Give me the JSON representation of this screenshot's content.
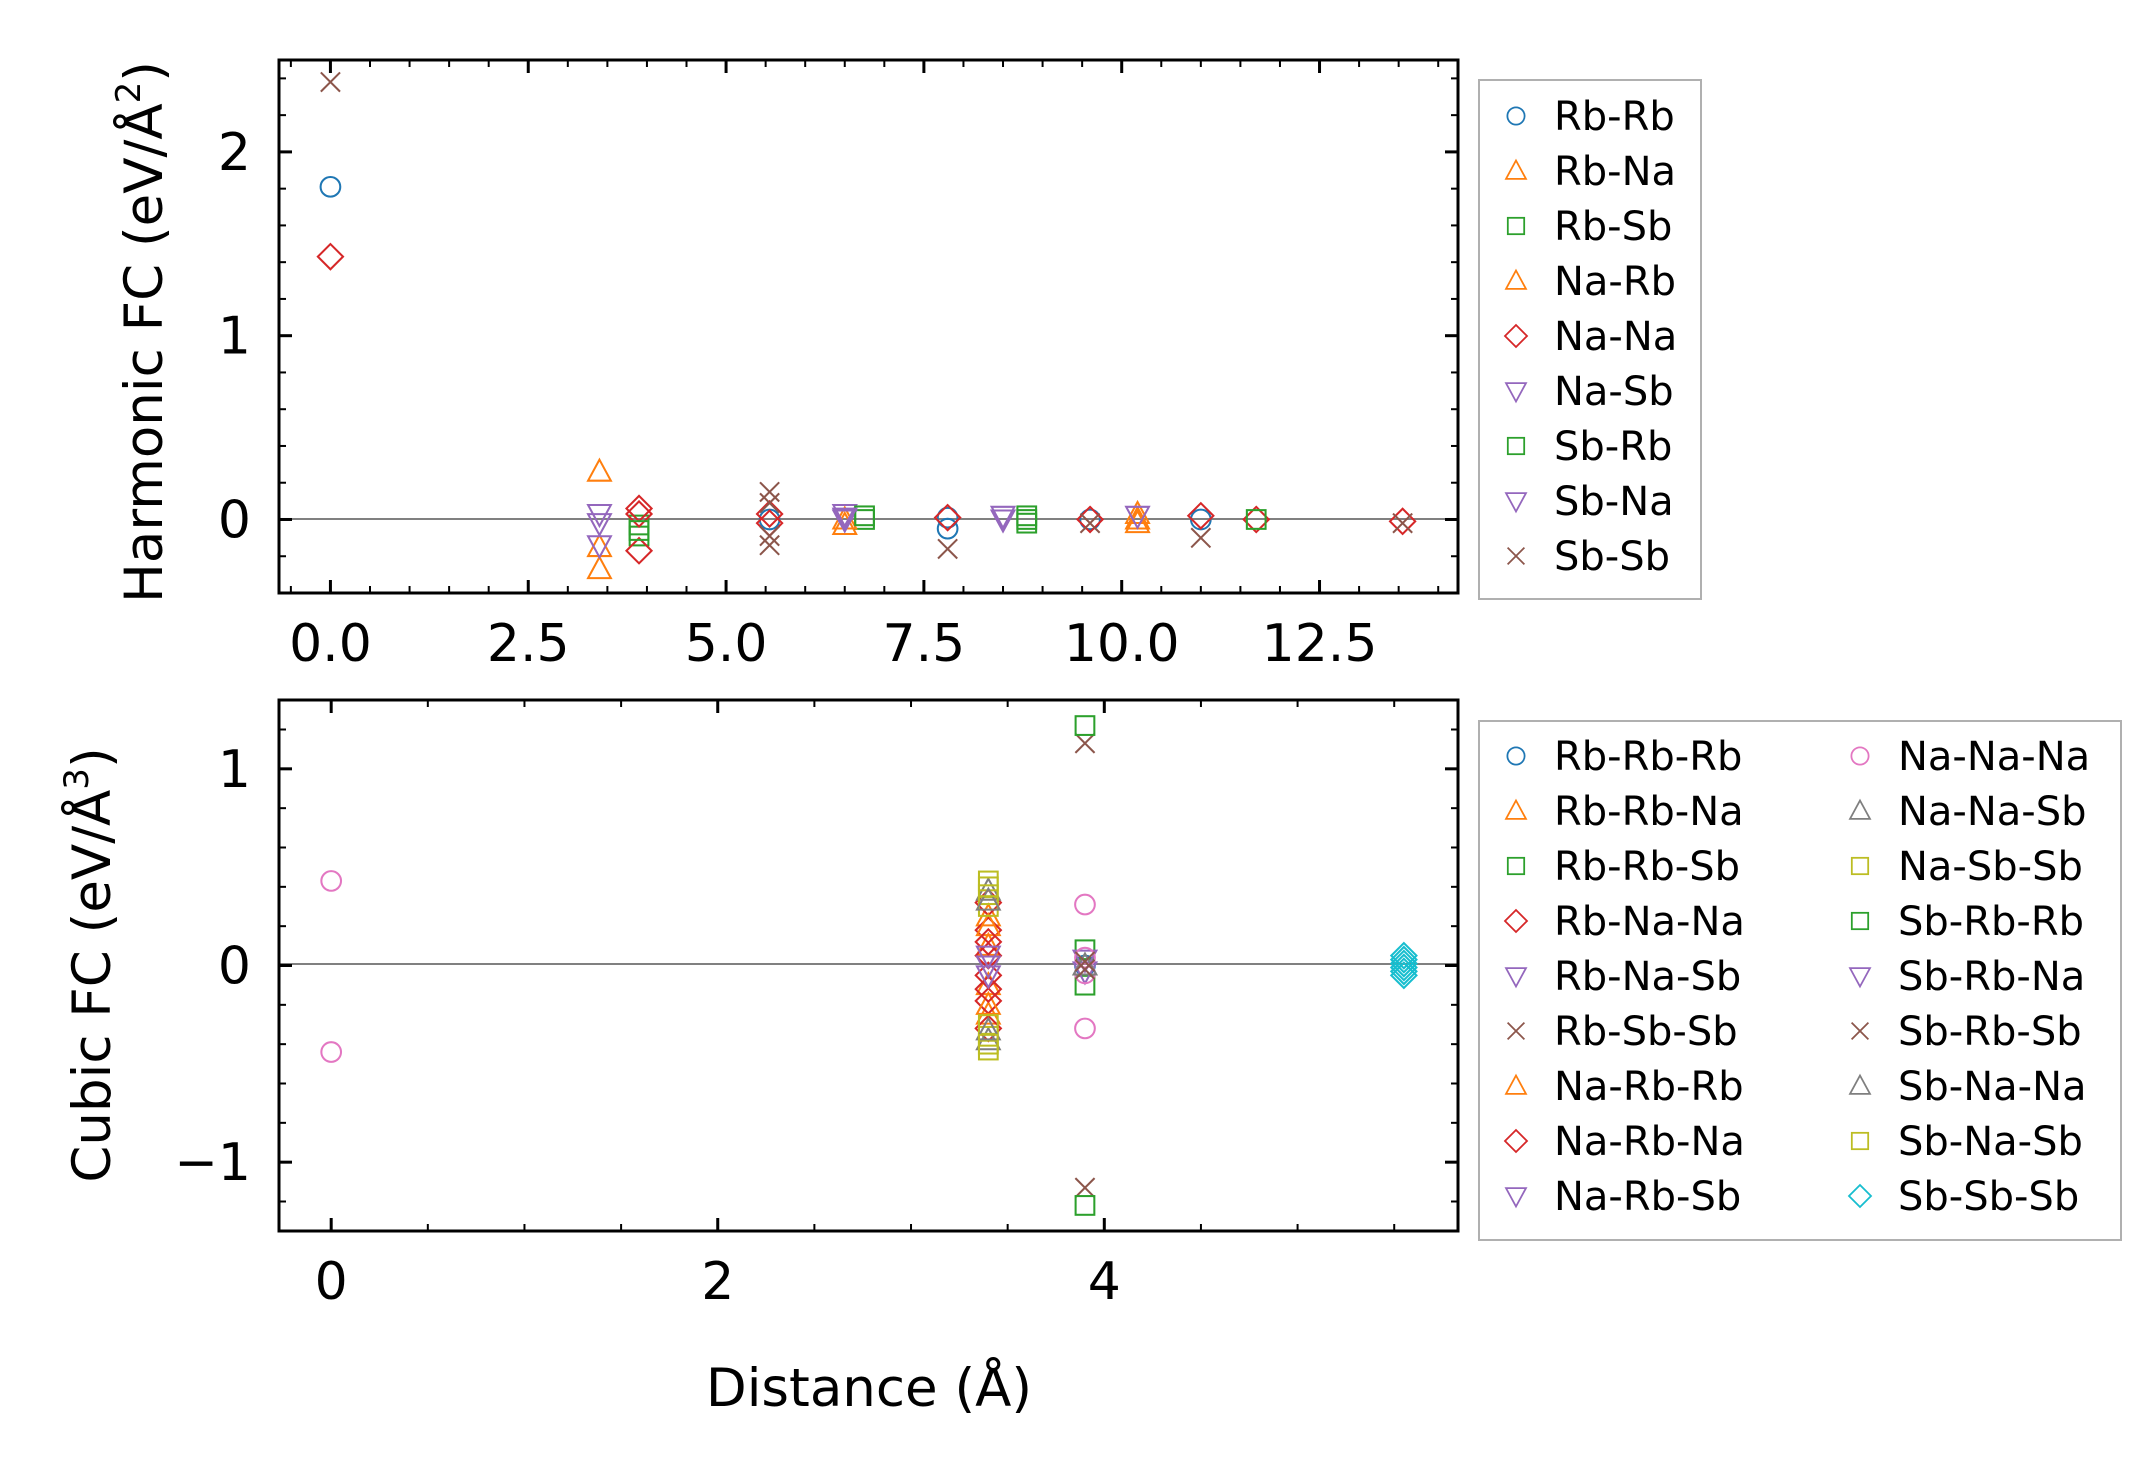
{
  "chart_data": [
    {
      "type": "scatter",
      "ylabel": "Harmonic FC (eV/Å²)",
      "ylabel_main": "Harmonic FC (eV/Å",
      "ylabel_sup": "2",
      "ylabel_end": ")",
      "xlabel": "",
      "xlim": [
        -0.65,
        14.25
      ],
      "ylim": [
        -0.4,
        2.5
      ],
      "xticks": [
        0.0,
        2.5,
        5.0,
        7.5,
        10.0,
        12.5
      ],
      "xtick_labels": [
        "0.0",
        "2.5",
        "5.0",
        "7.5",
        "10.0",
        "12.5"
      ],
      "yticks": [
        0,
        1,
        2
      ],
      "ytick_labels": [
        "0",
        "1",
        "2"
      ],
      "zero_line": true,
      "legend_position": "outside-right",
      "series": [
        {
          "name": "Rb-Rb",
          "marker": "circle",
          "color": "#1f77b4",
          "points": [
            [
              0.0,
              1.81
            ],
            [
              5.55,
              0.0
            ],
            [
              7.8,
              -0.05
            ],
            [
              7.8,
              0.01
            ],
            [
              9.6,
              0.0
            ],
            [
              11.0,
              0.0
            ]
          ]
        },
        {
          "name": "Rb-Na",
          "marker": "triangle-up",
          "color": "#ff7f0e",
          "points": [
            [
              3.4,
              0.26
            ],
            [
              3.4,
              -0.27
            ],
            [
              6.5,
              -0.03
            ],
            [
              10.2,
              0.0
            ],
            [
              10.2,
              0.03
            ]
          ]
        },
        {
          "name": "Rb-Sb",
          "marker": "square",
          "color": "#2ca02c",
          "points": [
            [
              3.9,
              -0.03
            ],
            [
              3.9,
              -0.09
            ],
            [
              6.75,
              0.0
            ],
            [
              8.8,
              0.02
            ],
            [
              8.8,
              -0.02
            ]
          ]
        },
        {
          "name": "Na-Rb",
          "marker": "triangle-up",
          "color": "#ff7f0e",
          "points": [
            [
              3.4,
              -0.15
            ],
            [
              6.5,
              0.0
            ],
            [
              10.2,
              -0.02
            ]
          ]
        },
        {
          "name": "Na-Na",
          "marker": "diamond",
          "color": "#d62728",
          "points": [
            [
              0.0,
              1.43
            ],
            [
              3.9,
              0.06
            ],
            [
              3.9,
              0.03
            ],
            [
              3.9,
              -0.17
            ],
            [
              5.55,
              0.03
            ],
            [
              5.55,
              -0.02
            ],
            [
              7.8,
              0.01
            ],
            [
              9.6,
              0.0
            ],
            [
              11.0,
              0.02
            ],
            [
              11.7,
              0.0
            ],
            [
              13.55,
              -0.01
            ]
          ]
        },
        {
          "name": "Na-Sb",
          "marker": "triangle-down",
          "color": "#9467bd",
          "points": [
            [
              3.4,
              0.03
            ],
            [
              3.4,
              -0.02
            ],
            [
              6.5,
              0.03
            ],
            [
              6.5,
              0.0
            ],
            [
              8.5,
              0.02
            ],
            [
              10.2,
              0.02
            ]
          ]
        },
        {
          "name": "Sb-Rb",
          "marker": "square",
          "color": "#2ca02c",
          "points": [
            [
              3.9,
              -0.06
            ],
            [
              6.75,
              0.02
            ],
            [
              8.8,
              0.0
            ],
            [
              11.7,
              0.0
            ]
          ]
        },
        {
          "name": "Sb-Na",
          "marker": "triangle-down",
          "color": "#9467bd",
          "points": [
            [
              3.4,
              -0.14
            ],
            [
              6.5,
              0.01
            ],
            [
              8.5,
              0.0
            ]
          ]
        },
        {
          "name": "Sb-Sb",
          "marker": "x",
          "color": "#8c564b",
          "points": [
            [
              0.0,
              2.38
            ],
            [
              5.55,
              0.15
            ],
            [
              5.55,
              0.09
            ],
            [
              5.55,
              -0.09
            ],
            [
              5.55,
              -0.14
            ],
            [
              7.8,
              -0.16
            ],
            [
              9.6,
              -0.02
            ],
            [
              11.0,
              -0.1
            ],
            [
              13.55,
              -0.02
            ]
          ]
        }
      ]
    },
    {
      "type": "scatter",
      "ylabel": "Cubic FC (eV/Å³)",
      "ylabel_main": "Cubic FC (eV/Å",
      "ylabel_sup": "3",
      "ylabel_end": ")",
      "xlabel": "Distance (Å)",
      "xlim": [
        -0.27,
        5.83
      ],
      "ylim": [
        -1.35,
        1.35
      ],
      "xticks": [
        0,
        2,
        4
      ],
      "xtick_labels": [
        "0",
        "2",
        "4"
      ],
      "yticks": [
        -1,
        0,
        1
      ],
      "ytick_labels": [
        "−1",
        "0",
        "1"
      ],
      "zero_line": true,
      "legend_position": "outside-right",
      "series": [
        {
          "name": "Rb-Rb-Rb",
          "marker": "circle",
          "color": "#1f77b4",
          "points": [
            [
              3.9,
              0.0
            ]
          ]
        },
        {
          "name": "Rb-Rb-Na",
          "marker": "triangle-up",
          "color": "#ff7f0e",
          "points": [
            [
              3.4,
              0.25
            ],
            [
              3.4,
              0.1
            ],
            [
              3.4,
              -0.1
            ],
            [
              3.4,
              -0.25
            ]
          ]
        },
        {
          "name": "Rb-Rb-Sb",
          "marker": "square",
          "color": "#2ca02c",
          "points": [
            [
              3.9,
              0.08
            ],
            [
              3.9,
              -0.1
            ]
          ]
        },
        {
          "name": "Rb-Na-Na",
          "marker": "diamond",
          "color": "#d62728",
          "points": [
            [
              3.4,
              0.32
            ],
            [
              3.4,
              0.18
            ],
            [
              3.4,
              0.05
            ],
            [
              3.4,
              -0.05
            ],
            [
              3.4,
              -0.18
            ],
            [
              3.4,
              -0.32
            ]
          ]
        },
        {
          "name": "Rb-Na-Sb",
          "marker": "triangle-down",
          "color": "#9467bd",
          "points": [
            [
              3.9,
              0.03
            ],
            [
              3.9,
              -0.03
            ]
          ]
        },
        {
          "name": "Rb-Sb-Sb",
          "marker": "x",
          "color": "#8c564b",
          "points": [
            [
              3.9,
              1.13
            ],
            [
              3.9,
              -1.13
            ]
          ]
        },
        {
          "name": "Na-Rb-Rb",
          "marker": "triangle-up",
          "color": "#ff7f0e",
          "points": [
            [
              3.4,
              0.2
            ],
            [
              3.4,
              -0.2
            ]
          ]
        },
        {
          "name": "Na-Rb-Na",
          "marker": "diamond",
          "color": "#d62728",
          "points": [
            [
              3.4,
              0.12
            ],
            [
              3.4,
              -0.12
            ]
          ]
        },
        {
          "name": "Na-Rb-Sb",
          "marker": "triangle-down",
          "color": "#9467bd",
          "points": [
            [
              3.4,
              0.0
            ]
          ]
        },
        {
          "name": "Na-Na-Na",
          "marker": "circle",
          "color": "#e377c2",
          "points": [
            [
              0.0,
              0.43
            ],
            [
              0.0,
              -0.44
            ],
            [
              3.9,
              0.31
            ],
            [
              3.9,
              -0.32
            ],
            [
              3.9,
              0.04
            ],
            [
              3.9,
              -0.04
            ]
          ]
        },
        {
          "name": "Na-Na-Sb",
          "marker": "triangle-up",
          "color": "#7f7f7f",
          "points": [
            [
              3.4,
              0.38
            ],
            [
              3.4,
              -0.38
            ],
            [
              3.9,
              0.0
            ]
          ]
        },
        {
          "name": "Na-Sb-Sb",
          "marker": "square",
          "color": "#bcbd22",
          "points": [
            [
              3.4,
              0.43
            ],
            [
              3.4,
              0.36
            ],
            [
              3.4,
              0.3
            ],
            [
              3.4,
              -0.3
            ],
            [
              3.4,
              -0.36
            ],
            [
              3.4,
              -0.43
            ]
          ]
        },
        {
          "name": "Sb-Rb-Rb",
          "marker": "square",
          "color": "#2ca02c",
          "points": [
            [
              3.9,
              1.22
            ],
            [
              3.9,
              -1.22
            ]
          ]
        },
        {
          "name": "Sb-Rb-Na",
          "marker": "triangle-down",
          "color": "#9467bd",
          "points": [
            [
              3.4,
              0.05
            ],
            [
              3.4,
              -0.05
            ]
          ]
        },
        {
          "name": "Sb-Rb-Sb",
          "marker": "x",
          "color": "#8c564b",
          "points": [
            [
              3.9,
              0.02
            ],
            [
              3.9,
              -0.02
            ]
          ]
        },
        {
          "name": "Sb-Na-Na",
          "marker": "triangle-up",
          "color": "#7f7f7f",
          "points": [
            [
              3.4,
              0.33
            ],
            [
              3.4,
              -0.33
            ]
          ]
        },
        {
          "name": "Sb-Na-Sb",
          "marker": "square",
          "color": "#bcbd22",
          "points": [
            [
              3.4,
              0.4
            ],
            [
              3.4,
              -0.4
            ]
          ]
        },
        {
          "name": "Sb-Sb-Sb",
          "marker": "diamond",
          "color": "#17becf",
          "points": [
            [
              5.55,
              0.05
            ],
            [
              5.55,
              0.03
            ],
            [
              5.55,
              0.01
            ],
            [
              5.55,
              -0.01
            ],
            [
              5.55,
              -0.03
            ],
            [
              5.55,
              -0.05
            ]
          ]
        }
      ]
    }
  ]
}
